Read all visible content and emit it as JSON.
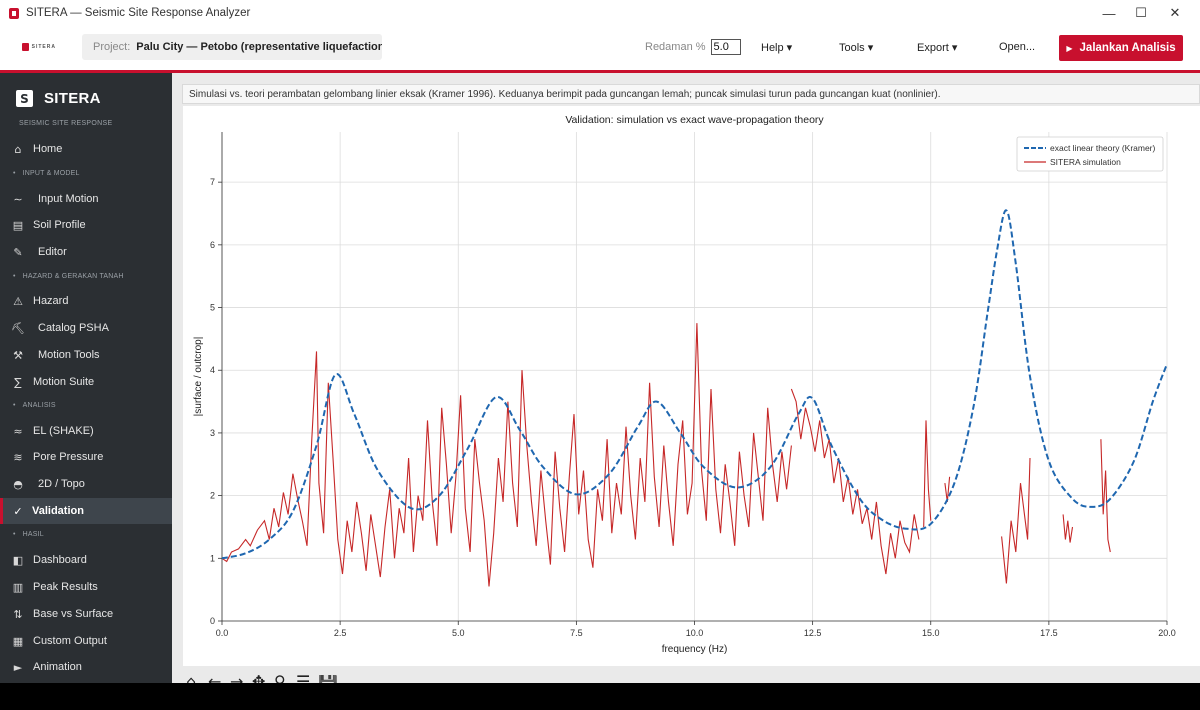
{
  "window": {
    "title": "SITERA — Seismic Site Response Analyzer",
    "controls": {
      "minimize": "—",
      "maximize": "☐",
      "close": "✕"
    }
  },
  "toolbar": {
    "logo_text": "SITERA",
    "project_label": "Project:",
    "project_value": "Palu City — Petobo (representative liquefaction site)",
    "damping_label": "Redaman %",
    "damping_value": "5.0",
    "menus": [
      "Help ▾",
      "Tools ▾",
      "Export ▾",
      "Open..."
    ],
    "run_label": "Jalankan Analisis",
    "run_icon": "▶",
    "accent_color": "#c8102e"
  },
  "sidebar": {
    "logo": "SITERA",
    "subtitle": "SEISMIC SITE RESPONSE",
    "items": [
      {
        "type": "item",
        "icon": "⌂",
        "label": "Home"
      },
      {
        "type": "section",
        "label": "INPUT & MODEL"
      },
      {
        "type": "item",
        "icon": "∼",
        "label": "Input Motion"
      },
      {
        "type": "item",
        "icon": "▤",
        "label": "Soil Profile"
      },
      {
        "type": "item",
        "icon": "✎",
        "label": "Editor"
      },
      {
        "type": "section",
        "label": "HAZARD & GERAKAN TANAH"
      },
      {
        "type": "item",
        "icon": "⚠",
        "label": "Hazard"
      },
      {
        "type": "item",
        "icon": "⛏",
        "label": "Catalog PSHA"
      },
      {
        "type": "item",
        "icon": "⚒",
        "label": "Motion Tools"
      },
      {
        "type": "item",
        "icon": "∑",
        "label": "Motion Suite"
      },
      {
        "type": "section",
        "label": "ANALISIS"
      },
      {
        "type": "item",
        "icon": "≈",
        "label": "EL (SHAKE)"
      },
      {
        "type": "item",
        "icon": "≋",
        "label": "Pore Pressure"
      },
      {
        "type": "item",
        "icon": "◓",
        "label": "2D / Topo"
      },
      {
        "type": "item",
        "icon": "✓",
        "label": "Validation",
        "active": true
      },
      {
        "type": "section",
        "label": "HASIL"
      },
      {
        "type": "item",
        "icon": "◧",
        "label": "Dashboard"
      },
      {
        "type": "item",
        "icon": "▥",
        "label": "Peak Results"
      },
      {
        "type": "item",
        "icon": "⇅",
        "label": "Base vs Surface"
      },
      {
        "type": "item",
        "icon": "▦",
        "label": "Custom Output"
      },
      {
        "type": "item",
        "icon": "►",
        "label": "Animation"
      }
    ]
  },
  "main": {
    "caption": "Simulasi vs. teori perambatan gelombang linier eksak (Kramer 1996). Keduanya berimpit pada guncangan lemah; puncak simulasi turun pada guncangan kuat (nonlinier).",
    "plot_toolbar_icons": [
      "⌂",
      "←",
      "→",
      "✥",
      "⚲",
      "☰",
      "💾"
    ]
  },
  "chart_data": {
    "type": "line",
    "title": "Validation: simulation vs exact wave-propagation theory",
    "xlabel": "frequency (Hz)",
    "ylabel": "|surface / outcrop|",
    "xlim": [
      0,
      20
    ],
    "ylim": [
      0,
      7.8
    ],
    "xticks": [
      0.0,
      2.5,
      5.0,
      7.5,
      10.0,
      12.5,
      15.0,
      17.5,
      20.0
    ],
    "xtick_labels": [
      "0.0",
      "2.5",
      "5.0",
      "7.5",
      "10.0",
      "12.5",
      "15.0",
      "17.5",
      "20.0"
    ],
    "yticks": [
      0,
      1,
      2,
      3,
      4,
      5,
      6,
      7
    ],
    "ytick_labels": [
      "0",
      "1",
      "2",
      "3",
      "4",
      "5",
      "6",
      "7"
    ],
    "grid": true,
    "legend_position": "top-right",
    "series": [
      {
        "name": "exact linear theory (Kramer)",
        "style": "dashed",
        "color": "#1f67b0",
        "x": [
          0.0,
          0.5,
          1.0,
          1.5,
          2.0,
          2.4,
          2.8,
          3.3,
          4.0,
          4.6,
          5.2,
          5.8,
          6.3,
          6.8,
          7.5,
          8.2,
          8.8,
          9.2,
          9.7,
          10.2,
          10.9,
          11.6,
          12.2,
          12.5,
          12.9,
          13.5,
          14.0,
          14.5,
          15.0,
          15.5,
          15.9,
          16.2,
          16.4,
          16.6,
          16.8,
          17.1,
          17.5,
          18.0,
          18.4,
          18.8,
          19.3,
          19.7,
          20.0
        ],
        "y": [
          1.0,
          1.08,
          1.3,
          1.75,
          2.8,
          3.93,
          3.3,
          2.4,
          1.8,
          2.0,
          2.75,
          3.57,
          3.05,
          2.45,
          2.02,
          2.35,
          3.1,
          3.5,
          3.0,
          2.45,
          2.13,
          2.45,
          3.3,
          3.55,
          2.8,
          1.95,
          1.6,
          1.47,
          1.55,
          2.2,
          3.4,
          4.9,
          5.9,
          6.55,
          5.7,
          3.9,
          2.55,
          1.95,
          1.82,
          1.95,
          2.55,
          3.5,
          4.1
        ]
      },
      {
        "name": "SITERA simulation",
        "style": "solid",
        "color": "#c62828",
        "segments": [
          {
            "x": [
              0.0,
              0.1,
              0.2,
              0.35,
              0.5,
              0.6,
              0.75,
              0.9,
              1.0,
              1.1,
              1.2,
              1.3,
              1.4,
              1.5,
              1.6,
              1.7,
              1.8,
              1.9,
              2.0,
              2.05,
              2.15,
              2.25,
              2.35,
              2.45,
              2.55,
              2.65,
              2.75,
              2.85,
              2.95,
              3.05,
              3.15,
              3.25,
              3.35,
              3.45,
              3.55,
              3.65,
              3.75,
              3.85,
              3.95,
              4.05,
              4.15,
              4.25,
              4.35,
              4.45,
              4.55,
              4.65,
              4.75,
              4.85,
              4.95,
              5.05,
              5.15,
              5.25,
              5.35,
              5.45,
              5.55,
              5.65,
              5.75,
              5.85,
              5.95,
              6.05,
              6.15,
              6.25,
              6.35,
              6.45,
              6.55,
              6.65,
              6.75,
              6.85,
              6.95,
              7.05,
              7.15,
              7.25,
              7.35,
              7.45,
              7.55,
              7.65,
              7.75,
              7.85,
              7.95,
              8.05,
              8.15,
              8.25,
              8.35,
              8.45,
              8.55,
              8.65,
              8.75,
              8.85,
              8.95,
              9.05,
              9.15,
              9.25,
              9.35,
              9.45,
              9.55,
              9.65,
              9.75,
              9.85,
              9.95,
              10.05,
              10.15,
              10.25,
              10.35,
              10.45,
              10.55,
              10.65,
              10.75,
              10.85,
              10.95,
              11.05,
              11.15,
              11.25,
              11.35,
              11.45,
              11.55,
              11.65,
              11.75,
              11.85,
              11.95,
              12.05
            ],
            "y": [
              1.0,
              0.95,
              1.1,
              1.15,
              1.3,
              1.2,
              1.45,
              1.6,
              1.3,
              1.8,
              1.5,
              2.05,
              1.7,
              2.35,
              1.95,
              1.6,
              1.2,
              2.9,
              4.3,
              2.2,
              1.4,
              3.8,
              2.6,
              1.3,
              0.75,
              1.6,
              1.1,
              1.9,
              1.4,
              0.8,
              1.7,
              1.2,
              0.7,
              1.5,
              2.1,
              1.0,
              1.8,
              1.4,
              2.6,
              1.1,
              2.0,
              1.6,
              3.2,
              1.9,
              1.2,
              3.4,
              2.5,
              1.4,
              2.3,
              3.6,
              1.8,
              1.1,
              2.9,
              2.2,
              1.6,
              0.55,
              1.4,
              2.6,
              1.9,
              3.5,
              2.2,
              1.5,
              4.0,
              2.8,
              1.9,
              1.2,
              2.4,
              1.6,
              0.9,
              2.7,
              1.8,
              1.1,
              2.3,
              3.3,
              1.7,
              2.4,
              1.3,
              0.85,
              2.1,
              1.6,
              2.9,
              1.4,
              2.2,
              1.7,
              3.1,
              2.0,
              1.3,
              2.6,
              1.9,
              3.8,
              2.3,
              1.5,
              2.8,
              1.9,
              1.2,
              2.5,
              3.2,
              1.7,
              2.2,
              4.75,
              2.4,
              1.6,
              3.7,
              2.1,
              1.4,
              2.5,
              1.9,
              1.2,
              2.7,
              2.0,
              1.5,
              3.0,
              2.3,
              1.6,
              3.4,
              2.5,
              1.9,
              2.7,
              2.1,
              2.8
            ]
          },
          {
            "x": [
              12.05,
              12.15,
              12.25,
              12.35,
              12.45,
              12.55,
              12.65,
              12.75,
              12.85,
              12.95,
              13.05,
              13.15,
              13.25,
              13.35,
              13.45,
              13.55,
              13.65,
              13.75,
              13.85,
              13.95,
              14.05,
              14.15,
              14.25,
              14.35,
              14.45,
              14.55,
              14.65,
              14.75
            ],
            "y": [
              3.7,
              3.5,
              2.9,
              3.4,
              3.1,
              2.7,
              3.2,
              2.6,
              2.9,
              2.2,
              2.6,
              1.9,
              2.3,
              1.7,
              2.1,
              1.55,
              1.8,
              1.3,
              1.9,
              1.2,
              0.75,
              1.4,
              1.0,
              1.6,
              1.25,
              1.1,
              1.7,
              1.3
            ]
          },
          {
            "x": [
              14.85,
              14.9,
              14.95,
              15.0
            ],
            "y": [
              1.5,
              3.2,
              2.1,
              1.6
            ]
          },
          {
            "x": [
              15.3,
              15.35,
              15.4
            ],
            "y": [
              2.2,
              1.9,
              2.3
            ]
          },
          {
            "x": [
              16.5,
              16.6,
              16.7,
              16.8,
              16.9,
              17.05,
              17.1
            ],
            "y": [
              1.35,
              0.6,
              1.6,
              1.1,
              2.2,
              1.3,
              2.6
            ]
          },
          {
            "x": [
              17.8,
              17.85,
              17.9,
              17.95,
              18.0
            ],
            "y": [
              1.7,
              1.3,
              1.6,
              1.25,
              1.5
            ]
          },
          {
            "x": [
              18.6,
              18.65,
              18.7,
              18.75,
              18.8
            ],
            "y": [
              2.9,
              1.7,
              2.4,
              1.3,
              1.1
            ]
          }
        ]
      }
    ]
  }
}
